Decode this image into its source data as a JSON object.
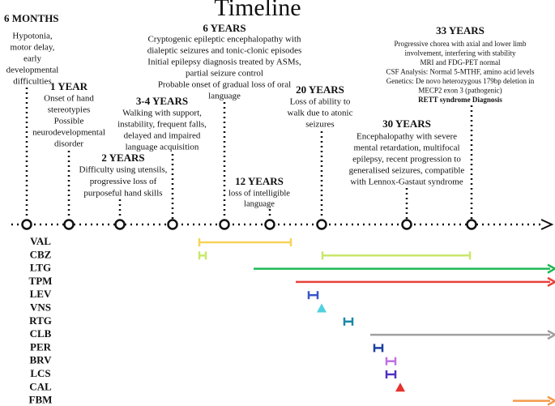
{
  "title": "Timeline",
  "events": [
    {
      "age": "6 MONTHS",
      "lines": [
        "Hypotonia,",
        "motor delay,",
        "early",
        "developmental",
        "difficulties"
      ]
    },
    {
      "age": "1 YEAR",
      "lines": [
        "Onset of hand",
        "stereotypies",
        "Possible",
        "neurodevelopmental",
        "disorder"
      ]
    },
    {
      "age": "2 YEARS",
      "lines": [
        "Difficulty using utensils,",
        "progressive loss of",
        "purposeful hand skills"
      ]
    },
    {
      "age": "3-4 YEARS",
      "lines": [
        "Walking with support,",
        "instability, frequent falls,",
        "delayed and impaired",
        "language acquisition"
      ]
    },
    {
      "age": "6 YEARS",
      "lines": [
        "Cryptogenic epileptic encephalopathy with",
        "dialeptic seizures and tonic-clonic episodes",
        "Initial epilepsy diagnosis treated by ASMs,",
        "partial seizure control",
        "Probable onset of gradual loss of oral",
        "language"
      ]
    },
    {
      "age": "12 YEARS",
      "lines": [
        "loss of intelligible",
        "language"
      ]
    },
    {
      "age": "20 YEARS",
      "lines": [
        "Loss of ability to",
        "walk due to atonic",
        "seizures"
      ]
    },
    {
      "age": "30 YEARS",
      "lines": [
        "Encephalopathy with severe",
        "mental retardation, multifocal",
        "epilepsy, recent progression to",
        "generalised seizures, compatible",
        "with Lennox-Gastaut syndrome"
      ]
    },
    {
      "age": "33 YEARS",
      "lines": [
        "Progressive chorea with axial and lower limb",
        "involvement, interfering with stability",
        "MRI and FDG-PET normal",
        "CSF Analysis: Normal 5-MTHF, amino acid levels",
        "Genetics: De novo heterozygous 179bp deletion in",
        "MECP2 exon 3 (pathogenic)"
      ],
      "diagnosis": "RETT syndrome Diagnosis"
    }
  ],
  "drugs": [
    "VAL",
    "CBZ",
    "LTG",
    "TPM",
    "LEV",
    "VNS",
    "RTG",
    "CLB",
    "PER",
    "BRV",
    "LCS",
    "CAL",
    "FBM"
  ]
}
